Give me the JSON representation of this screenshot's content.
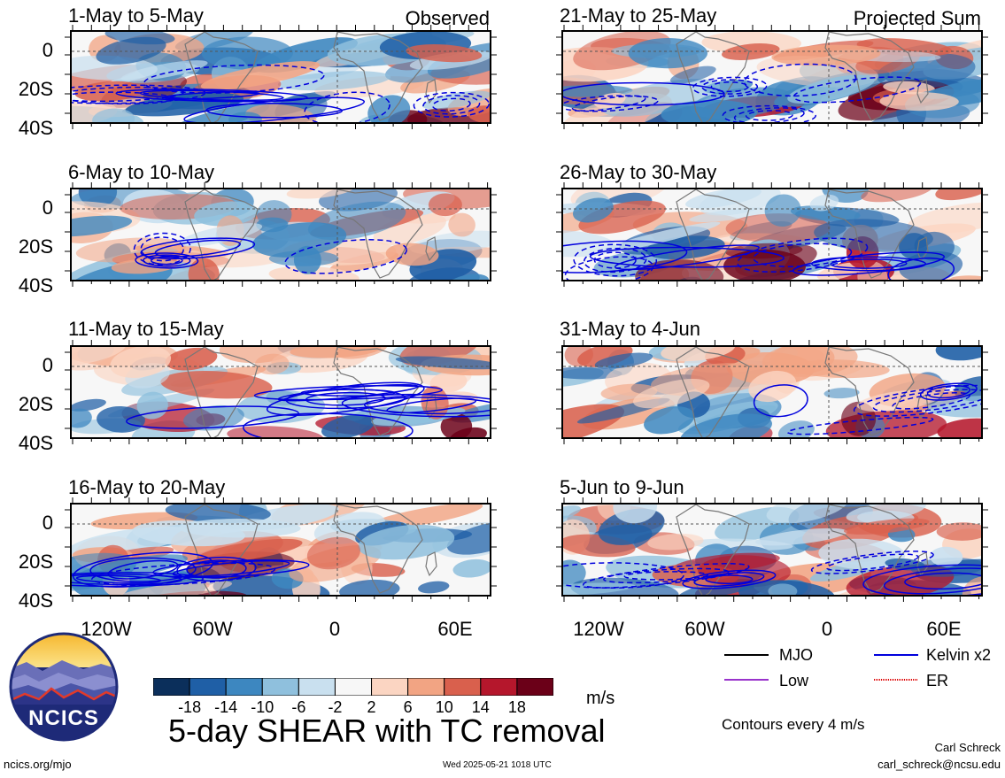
{
  "panels": [
    {
      "title": "1-May to 5-May",
      "corner": "Observed",
      "seed": 1
    },
    {
      "title": "6-May to 10-May",
      "corner": "",
      "seed": 2
    },
    {
      "title": "11-May to 15-May",
      "corner": "",
      "seed": 3
    },
    {
      "title": "16-May to 20-May",
      "corner": "",
      "seed": 4
    },
    {
      "title": "21-May to 25-May",
      "corner": "Projected Sum",
      "seed": 5
    },
    {
      "title": "26-May to 30-May",
      "corner": "",
      "seed": 6
    },
    {
      "title": "31-May to 4-Jun",
      "corner": "",
      "seed": 7
    },
    {
      "title": "5-Jun to 9-Jun",
      "corner": "",
      "seed": 8
    }
  ],
  "y_ticks": [
    "0",
    "20S",
    "40S"
  ],
  "x_ticks": [
    "120W",
    "60W",
    "0",
    "60E"
  ],
  "colorbar": {
    "colors": [
      "#0b2f5b",
      "#1f5fa6",
      "#3d87c0",
      "#8fc0dd",
      "#c9e0ef",
      "#f7f7f7",
      "#fbd5c2",
      "#f2a483",
      "#d9604d",
      "#b5172c",
      "#6b0018"
    ],
    "labels": [
      "-18",
      "-14",
      "-10",
      "-6",
      "-2",
      "2",
      "6",
      "10",
      "14",
      "18"
    ],
    "unit": "m/s"
  },
  "legend": {
    "items": [
      {
        "label": "MJO",
        "color": "#000000"
      },
      {
        "label": "Kelvin x2",
        "color": "#0000dd"
      },
      {
        "label": "Low",
        "color": "#9933cc"
      },
      {
        "label": "ER",
        "color": "#dd0000"
      }
    ],
    "note": "Contours every 4 m/s"
  },
  "main_title": "5-day SHEAR with TC removal",
  "logo_text": "NCICS",
  "footer": {
    "left": "ncics.org/mjo",
    "center": "Wed 2025-05-21 1018 UTC",
    "author": "Carl Schreck",
    "email": "carl_schreck@ncsu.edu"
  }
}
